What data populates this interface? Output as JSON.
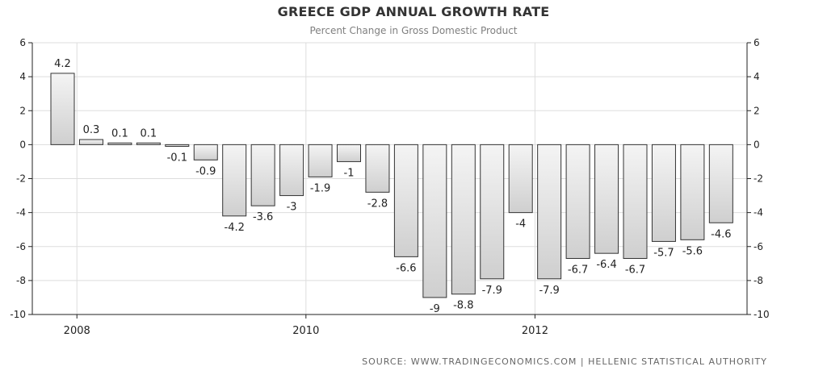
{
  "chart_data": {
    "type": "bar",
    "title": "GREECE GDP ANNUAL GROWTH RATE",
    "subtitle": "Percent Change in Gross Domestic Product",
    "xlabel": "",
    "ylabel": "",
    "ylim": [
      -10,
      6
    ],
    "yticks": [
      -10,
      -8,
      -6,
      -4,
      -2,
      0,
      2,
      4,
      6
    ],
    "xticks": [
      {
        "label": "2008",
        "after_index": 0
      },
      {
        "label": "2010",
        "after_index": 8
      },
      {
        "label": "2012",
        "after_index": 16
      }
    ],
    "values": [
      4.2,
      0.3,
      0.1,
      0.1,
      -0.1,
      -0.9,
      -4.2,
      -3.6,
      -3,
      -1.9,
      -1,
      -2.8,
      -6.6,
      -9,
      -8.8,
      -7.9,
      -4,
      -7.9,
      -6.7,
      -6.4,
      -6.7,
      -5.7,
      -5.6,
      -4.6
    ],
    "labels": [
      "4.2",
      "0.3",
      "0.1",
      "0.1",
      "-0.1",
      "-0.9",
      "-4.2",
      "-3.6",
      "-3",
      "-1.9",
      "-1",
      "-2.8",
      "-6.6",
      "-9",
      "-8.8",
      "-7.9",
      "-4",
      "-7.9",
      "-6.7",
      "-6.4",
      "-6.7",
      "-5.7",
      "-5.6",
      "-4.6"
    ],
    "grid": true,
    "axes": "left-and-right"
  },
  "colors": {
    "bar_fill_top": "#f4f4f4",
    "bar_fill_bottom": "#cfcfcf",
    "bar_stroke": "#333333",
    "grid": "#dddddd",
    "axis": "#222222",
    "text": "#222222"
  },
  "source": "SOURCE:  WWW.TRADINGECONOMICS.COM  |  HELLENIC STATISTICAL AUTHORITY"
}
